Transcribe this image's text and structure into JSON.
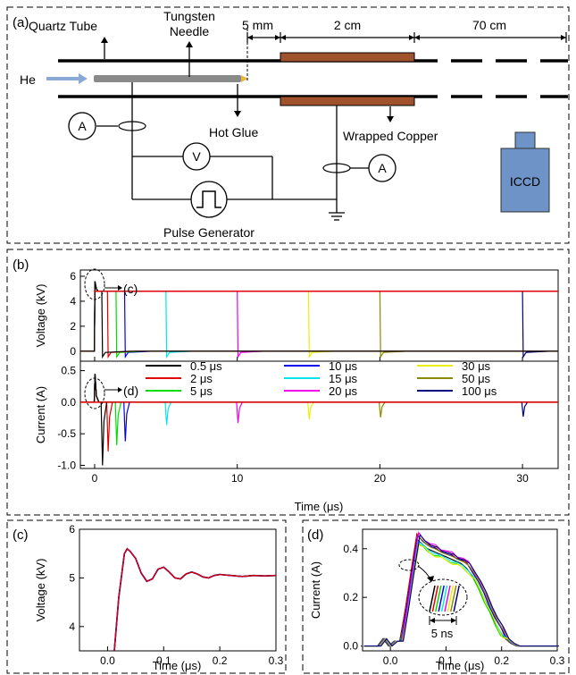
{
  "panels": {
    "a": {
      "label": "(a)",
      "quartz_tube": "Quartz Tube",
      "tungsten_line1": "Tungsten",
      "tungsten_line2": "Needle",
      "gap": "5 mm",
      "electrode_len": "2 cm",
      "far_len": "70 cm",
      "he": "He",
      "hot_glue": "Hot Glue",
      "wrapped_copper": "Wrapped Copper",
      "ammeter": "A",
      "voltmeter": "V",
      "pulse_generator": "Pulse Generator",
      "iccd": "ICCD"
    },
    "b": {
      "label": "(b)",
      "callout_c": "(c)",
      "callout_d": "(d)"
    },
    "c": {
      "label": "(c)"
    },
    "d": {
      "label": "(d)",
      "inset_label": "5 ns"
    }
  },
  "colors": {
    "copper": "#a0522d",
    "needle": "#8a8a8a",
    "he_arrow": "#8aa9d6",
    "iccd": "#6d93c7",
    "series": [
      "#000000",
      "#e00000",
      "#00dd00",
      "#0000ee",
      "#00e5ee",
      "#ee00ee",
      "#eeee00",
      "#8b8b00",
      "#00007f"
    ]
  },
  "chart_data": [
    {
      "id": "b-voltage",
      "type": "line",
      "xlabel": "Time (μs)",
      "ylabel": "Voltage (kV)",
      "xlim": [
        -1,
        32.5
      ],
      "ylim": [
        -0.8,
        6.5
      ],
      "yticks": [
        0,
        2,
        4,
        6
      ],
      "plateau_kV": 4.8,
      "overshoot_kV": 5.6,
      "pulse_widths_us": [
        0.5,
        2,
        5,
        10,
        15,
        20,
        30,
        50,
        100
      ],
      "fall_times_us": [
        0.5,
        0.9,
        1.5,
        2.1,
        5,
        10,
        15,
        20,
        30
      ]
    },
    {
      "id": "b-current",
      "type": "line",
      "xlabel": "Time (μs)",
      "ylabel": "Current (A)",
      "xlim": [
        -1,
        32.5
      ],
      "ylim": [
        -1.05,
        0.65
      ],
      "xticks": [
        0,
        10,
        20,
        30
      ],
      "yticks": [
        -1.0,
        -0.5,
        0.0,
        0.5
      ],
      "ytick_labels": [
        "-1.0",
        "-0.5",
        "0.0",
        "0.5"
      ],
      "rise_peak_A": 0.45,
      "fall_peaks_A": [
        -1.0,
        -0.78,
        -0.68,
        -0.62,
        -0.36,
        -0.33,
        -0.27,
        -0.24,
        -0.23
      ],
      "legend": {
        "ncol": 3,
        "entries": [
          "0.5 μs",
          "2 μs",
          "5 μs",
          "10 μs",
          "15 μs",
          "20 μs",
          "30 μs",
          "50 μs",
          "100 μs"
        ]
      }
    },
    {
      "id": "c",
      "type": "line",
      "xlabel": "Time (μs)",
      "ylabel": "Voltage (kV)",
      "xlim": [
        -0.05,
        0.3
      ],
      "ylim": [
        3.5,
        6
      ],
      "xticks": [
        0.0,
        0.1,
        0.2,
        0.3
      ],
      "xtick_labels": [
        "0.0",
        "0.1",
        "0.2",
        "0.3"
      ],
      "yticks": [
        4,
        5,
        6
      ],
      "x": [
        0.012,
        0.02,
        0.03,
        0.035,
        0.04,
        0.05,
        0.06,
        0.07,
        0.08,
        0.09,
        0.1,
        0.11,
        0.12,
        0.13,
        0.14,
        0.15,
        0.16,
        0.17,
        0.18,
        0.19,
        0.2,
        0.22,
        0.24,
        0.26,
        0.28,
        0.3
      ],
      "y": [
        3.5,
        4.6,
        5.5,
        5.6,
        5.55,
        5.4,
        5.1,
        4.93,
        4.98,
        5.18,
        5.22,
        5.12,
        5.0,
        4.98,
        5.08,
        5.12,
        5.08,
        5.02,
        5.0,
        5.05,
        5.07,
        5.05,
        5.03,
        5.05,
        5.04,
        5.05
      ]
    },
    {
      "id": "d",
      "type": "line",
      "xlabel": "Time (μs)",
      "ylabel": "Current (A)",
      "xlim": [
        -0.05,
        0.3
      ],
      "ylim": [
        -0.02,
        0.48
      ],
      "xticks": [
        0.0,
        0.1,
        0.2,
        0.3
      ],
      "xtick_labels": [
        "0.0",
        "0.1",
        "0.2",
        "0.3"
      ],
      "yticks": [
        0.0,
        0.2,
        0.4
      ],
      "ytick_labels": [
        "0.0",
        "0.2",
        "0.4"
      ],
      "x": [
        -0.05,
        -0.02,
        -0.01,
        0.0,
        0.01,
        0.02,
        0.03,
        0.04,
        0.05,
        0.06,
        0.07,
        0.08,
        0.09,
        0.1,
        0.11,
        0.12,
        0.13,
        0.14,
        0.15,
        0.16,
        0.17,
        0.18,
        0.19,
        0.2,
        0.21,
        0.22,
        0.23,
        0.25,
        0.28,
        0.3
      ],
      "y": [
        0.0,
        0.0,
        0.03,
        0.0,
        0.02,
        0.02,
        0.15,
        0.3,
        0.44,
        0.42,
        0.4,
        0.39,
        0.38,
        0.37,
        0.36,
        0.35,
        0.34,
        0.32,
        0.29,
        0.25,
        0.2,
        0.15,
        0.1,
        0.06,
        0.03,
        0.01,
        0.0,
        0.0,
        0.0,
        0.0
      ]
    }
  ]
}
